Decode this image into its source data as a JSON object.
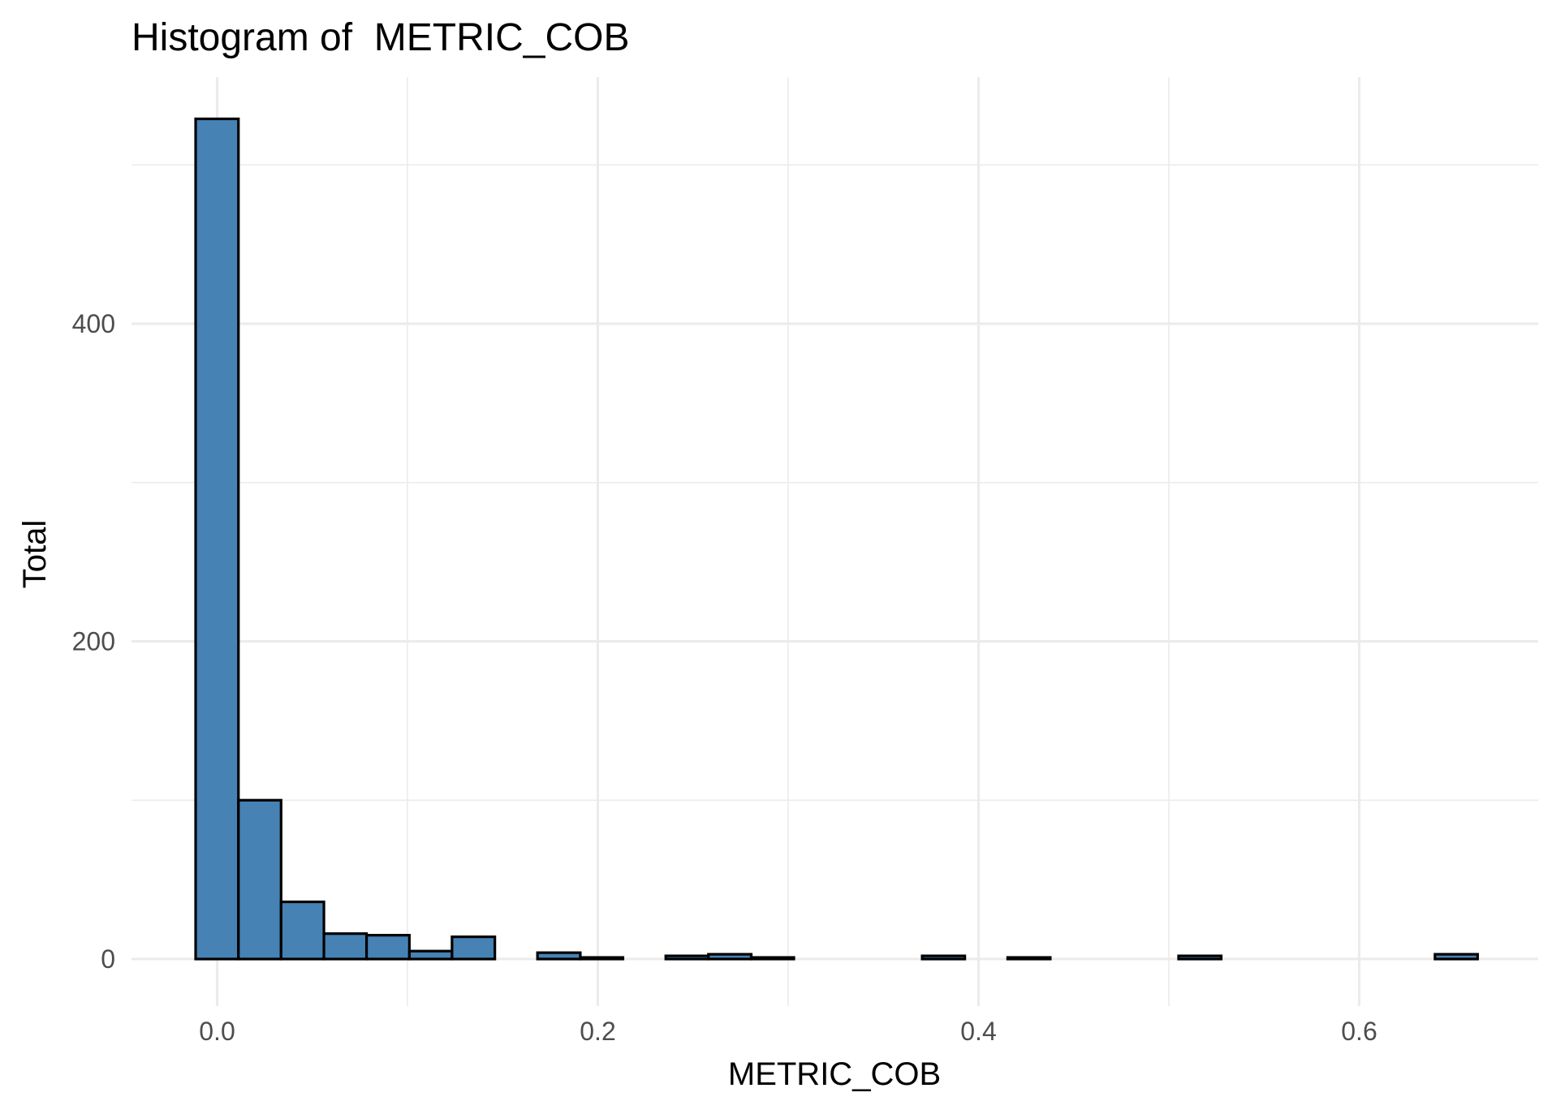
{
  "chart_data": {
    "type": "bar",
    "subtype": "histogram",
    "title": "Histogram of  METRIC_COB",
    "xlabel": "METRIC_COB",
    "ylabel": "Total",
    "xlim": [
      -0.04,
      0.69
    ],
    "ylim": [
      -27,
      557
    ],
    "x_ticks": [
      0.0,
      0.2,
      0.4,
      0.6
    ],
    "x_tick_labels": [
      "0.0",
      "0.2",
      "0.4",
      "0.6"
    ],
    "y_ticks": [
      0,
      200,
      400
    ],
    "y_tick_labels": [
      "0",
      "200",
      "400"
    ],
    "x_minor_ticks": [
      0.1,
      0.3,
      0.5
    ],
    "y_minor_ticks": [
      100,
      300,
      500
    ],
    "grid": true,
    "bin_edges": [
      -0.0113,
      0.0112,
      0.0336,
      0.0561,
      0.0785,
      0.101,
      0.1234,
      0.1459,
      0.1683,
      0.1908,
      0.2132,
      0.2357,
      0.2581,
      0.2806,
      0.303,
      0.3255,
      0.3479,
      0.3704,
      0.3928,
      0.4153,
      0.4377,
      0.4602,
      0.4826,
      0.5051,
      0.5275,
      0.55,
      0.5724,
      0.5949,
      0.6173,
      0.6398,
      0.6622
    ],
    "values": [
      529,
      100,
      36,
      16,
      15,
      5,
      14,
      0,
      4,
      1,
      0,
      2,
      3,
      1,
      0,
      0,
      0,
      2,
      0,
      1,
      0,
      0,
      0,
      2,
      0,
      0,
      0,
      0,
      0,
      3
    ],
    "bar_fill": "#4682b4",
    "bar_outline": "#000000",
    "grid_color": "#ebebeb"
  }
}
